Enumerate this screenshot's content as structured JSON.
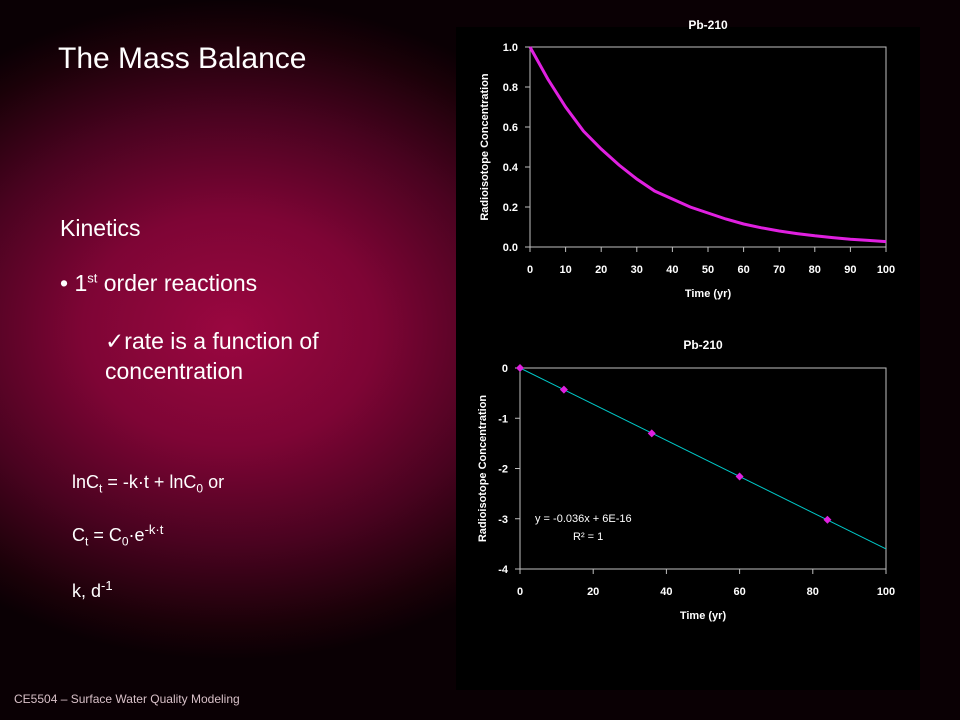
{
  "slide": {
    "title": "The Mass Balance",
    "kinetics": "Kinetics",
    "bullet_pre": "1",
    "bullet_sup": "st",
    "bullet_post": " order reactions",
    "check_mark": "✓",
    "check_text": "rate is a function of concentration",
    "eq1": {
      "a": "lnC",
      "a_sub": "t",
      "b": " = -k·t + lnC",
      "b_sub": "0",
      "c": " or"
    },
    "eq2": {
      "a": "C",
      "a_sub": "t",
      "b": " = C",
      "b_sub": "0",
      "c": "·e",
      "c_sup": "-k·t"
    },
    "eq3": {
      "a": "k, d",
      "a_sup": "-1"
    },
    "footer": "CE5504 – Surface Water Quality Modeling"
  },
  "colors": {
    "curve": "#e020e0",
    "trendline": "#00c8c8",
    "marker": "#e020e0",
    "panel": "#000000"
  },
  "chart_data": [
    {
      "type": "line",
      "title": "Pb-210",
      "xlabel": "Time (yr)",
      "ylabel": "Radioisotope Concentration",
      "xlim": [
        0,
        100
      ],
      "ylim": [
        0,
        1.0
      ],
      "xticks": [
        "0",
        "10",
        "20",
        "30",
        "40",
        "50",
        "60",
        "70",
        "80",
        "90",
        "100"
      ],
      "yticks": [
        "0.0",
        "0.2",
        "0.4",
        "0.6",
        "0.8",
        "1.0"
      ],
      "series": [
        {
          "x": [
            0,
            5,
            10,
            15,
            20,
            25,
            30,
            35,
            40,
            45,
            50,
            55,
            60,
            65,
            70,
            75,
            80,
            85,
            90,
            95,
            100
          ],
          "values": [
            1.0,
            0.84,
            0.7,
            0.58,
            0.49,
            0.41,
            0.34,
            0.28,
            0.24,
            0.2,
            0.17,
            0.14,
            0.115,
            0.096,
            0.08,
            0.067,
            0.056,
            0.047,
            0.039,
            0.033,
            0.027
          ]
        }
      ]
    },
    {
      "type": "scatter",
      "title": "Pb-210",
      "xlabel": "Time (yr)",
      "ylabel": "Radioisotope Concentration",
      "xlim": [
        0,
        100
      ],
      "ylim": [
        -4,
        0
      ],
      "xticks": [
        "0",
        "20",
        "40",
        "60",
        "80",
        "100"
      ],
      "yticks": [
        "0",
        "-1",
        "-2",
        "-3",
        "-4"
      ],
      "series": [
        {
          "x": [
            0,
            12,
            36,
            60,
            84
          ],
          "values": [
            0,
            -0.43,
            -1.3,
            -2.16,
            -3.02
          ]
        }
      ],
      "trendline": {
        "slope": -0.036,
        "intercept": 0,
        "equation": "y = -0.036x + 6E-16",
        "r2_text": "R² = 1"
      }
    }
  ]
}
